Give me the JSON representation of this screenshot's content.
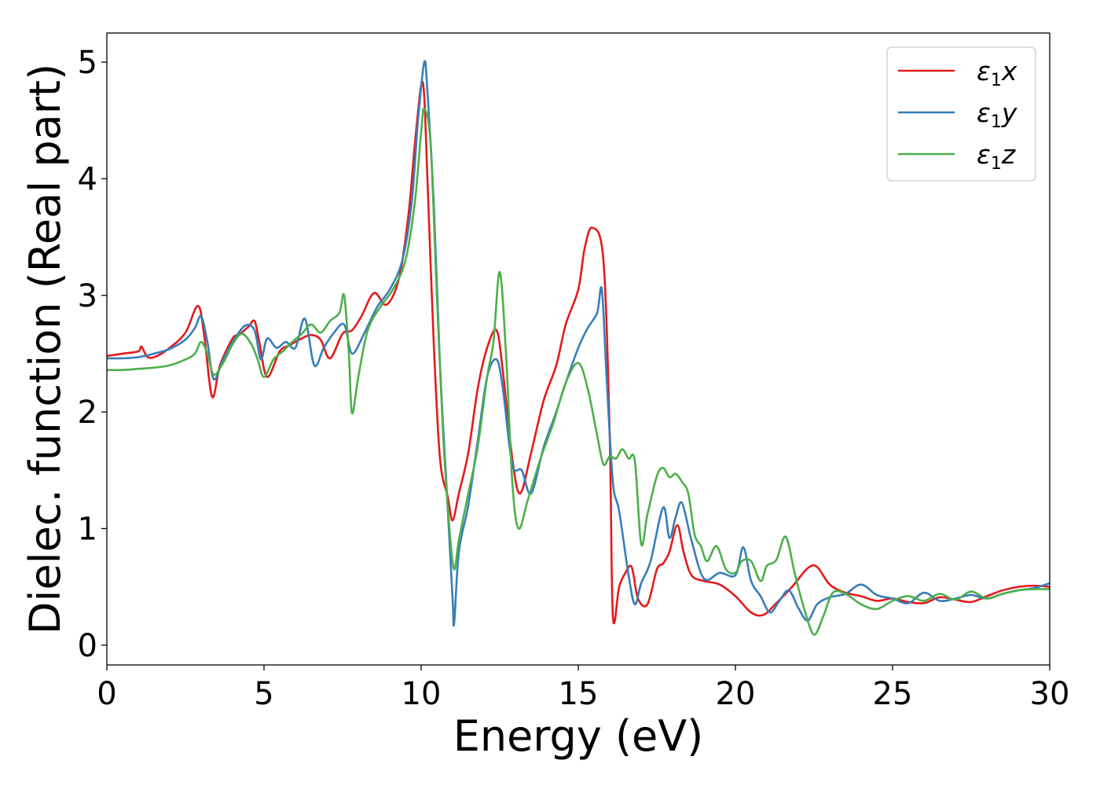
{
  "chart_data": {
    "type": "line",
    "title": "",
    "xlabel": "Energy (eV)",
    "ylabel": "Dielec. function (Real part)",
    "xlim": [
      0,
      30
    ],
    "ylim": [
      -0.17,
      5.25
    ],
    "xticks": [
      0,
      5,
      10,
      15,
      20,
      25,
      30
    ],
    "yticks": [
      0,
      1,
      2,
      3,
      4,
      5
    ],
    "xtick_labels": [
      "0",
      "5",
      "10",
      "15",
      "20",
      "25",
      "30"
    ],
    "ytick_labels": [
      "0",
      "1",
      "2",
      "3",
      "4",
      "5"
    ],
    "grid": false,
    "legend_position": "top-right",
    "series": [
      {
        "name": "ε1x",
        "legend": {
          "main": "ε",
          "sub": "1",
          "tail": "x"
        },
        "color": "#e41a1c",
        "x": [
          0,
          0.5,
          1.0,
          1.1,
          1.3,
          1.6,
          2.0,
          2.5,
          2.9,
          3.1,
          3.35,
          3.6,
          4.0,
          4.2,
          4.5,
          4.7,
          4.85,
          5.1,
          5.5,
          5.8,
          6.2,
          6.5,
          6.8,
          7.1,
          7.5,
          7.8,
          8.1,
          8.5,
          8.9,
          9.3,
          9.6,
          9.8,
          10.0,
          10.1,
          10.2,
          10.4,
          10.6,
          10.85,
          11.0,
          11.2,
          11.5,
          11.8,
          12.1,
          12.4,
          12.6,
          12.9,
          13.15,
          13.5,
          13.9,
          14.3,
          14.6,
          15.0,
          15.2,
          15.45,
          15.8,
          16.0,
          16.1,
          16.3,
          16.5,
          16.7,
          16.9,
          17.2,
          17.5,
          17.7,
          17.9,
          18.15,
          18.35,
          18.6,
          19.0,
          19.5,
          20.0,
          20.5,
          20.9,
          21.3,
          21.8,
          22.3,
          22.6,
          23.0,
          23.5,
          24.0,
          24.5,
          25.0,
          25.5,
          26.0,
          26.5,
          27.0,
          27.5,
          28.0,
          28.5,
          29.0,
          29.5,
          30.0
        ],
        "y": [
          2.48,
          2.5,
          2.52,
          2.56,
          2.47,
          2.48,
          2.55,
          2.68,
          2.91,
          2.65,
          2.13,
          2.4,
          2.63,
          2.66,
          2.73,
          2.78,
          2.6,
          2.3,
          2.52,
          2.57,
          2.63,
          2.66,
          2.62,
          2.46,
          2.67,
          2.7,
          2.82,
          3.02,
          2.92,
          3.15,
          3.7,
          4.3,
          4.8,
          4.7,
          4.0,
          2.6,
          1.6,
          1.27,
          1.07,
          1.3,
          1.65,
          2.2,
          2.55,
          2.7,
          2.35,
          1.6,
          1.3,
          1.65,
          2.1,
          2.4,
          2.75,
          3.05,
          3.4,
          3.58,
          3.3,
          1.8,
          0.25,
          0.5,
          0.62,
          0.67,
          0.4,
          0.35,
          0.65,
          0.7,
          0.8,
          1.03,
          0.8,
          0.6,
          0.55,
          0.52,
          0.42,
          0.28,
          0.26,
          0.36,
          0.5,
          0.66,
          0.67,
          0.52,
          0.45,
          0.42,
          0.38,
          0.4,
          0.37,
          0.36,
          0.41,
          0.39,
          0.37,
          0.42,
          0.47,
          0.5,
          0.51,
          0.5
        ]
      },
      {
        "name": "ε1y",
        "legend": {
          "main": "ε",
          "sub": "1",
          "tail": "y"
        },
        "color": "#377eb8",
        "x": [
          0,
          0.5,
          1.0,
          1.5,
          2.0,
          2.5,
          2.8,
          3.0,
          3.2,
          3.4,
          3.7,
          4.0,
          4.4,
          4.7,
          4.9,
          5.1,
          5.4,
          5.7,
          6.0,
          6.3,
          6.6,
          6.9,
          7.2,
          7.55,
          7.8,
          8.2,
          8.6,
          9.0,
          9.4,
          9.7,
          9.9,
          10.1,
          10.2,
          10.4,
          10.6,
          10.8,
          11.0,
          11.05,
          11.2,
          11.5,
          11.8,
          12.1,
          12.4,
          12.6,
          12.9,
          13.2,
          13.5,
          13.9,
          14.3,
          14.6,
          15.0,
          15.3,
          15.6,
          15.75,
          15.9,
          16.1,
          16.3,
          16.6,
          16.8,
          17.0,
          17.3,
          17.7,
          17.9,
          18.1,
          18.3,
          18.6,
          19.0,
          19.5,
          20.0,
          20.25,
          20.5,
          20.8,
          21.1,
          21.4,
          21.7,
          22.0,
          22.3,
          22.6,
          23.0,
          23.5,
          24.0,
          24.5,
          25.0,
          25.5,
          26.0,
          26.5,
          27.0,
          27.5,
          28.0,
          28.5,
          29.0,
          29.5,
          30.0
        ],
        "y": [
          2.46,
          2.46,
          2.47,
          2.5,
          2.54,
          2.62,
          2.72,
          2.82,
          2.6,
          2.28,
          2.45,
          2.6,
          2.74,
          2.7,
          2.45,
          2.63,
          2.55,
          2.6,
          2.55,
          2.8,
          2.4,
          2.55,
          2.67,
          2.75,
          2.5,
          2.68,
          2.9,
          3.05,
          3.3,
          3.8,
          4.5,
          5.0,
          4.75,
          3.8,
          2.4,
          1.4,
          0.4,
          0.19,
          0.8,
          1.2,
          1.75,
          2.3,
          2.45,
          2.2,
          1.55,
          1.5,
          1.3,
          1.7,
          2.0,
          2.25,
          2.55,
          2.72,
          2.85,
          3.05,
          2.3,
          1.4,
          1.15,
          0.6,
          0.35,
          0.53,
          0.72,
          1.18,
          0.92,
          1.1,
          1.22,
          0.9,
          0.57,
          0.62,
          0.6,
          0.84,
          0.55,
          0.42,
          0.28,
          0.38,
          0.47,
          0.32,
          0.21,
          0.35,
          0.41,
          0.44,
          0.52,
          0.43,
          0.4,
          0.36,
          0.45,
          0.38,
          0.4,
          0.43,
          0.4,
          0.44,
          0.47,
          0.49,
          0.53
        ]
      },
      {
        "name": "ε1z",
        "legend": {
          "main": "ε",
          "sub": "1",
          "tail": "z"
        },
        "color": "#4daf4a",
        "x": [
          0,
          0.5,
          1.0,
          1.5,
          2.0,
          2.5,
          2.8,
          3.0,
          3.2,
          3.4,
          3.7,
          4.0,
          4.3,
          4.6,
          4.8,
          5.0,
          5.3,
          5.6,
          5.9,
          6.2,
          6.5,
          6.8,
          7.1,
          7.4,
          7.55,
          7.7,
          7.8,
          8.0,
          8.3,
          8.7,
          9.1,
          9.5,
          9.8,
          10.0,
          10.1,
          10.3,
          10.5,
          10.7,
          10.9,
          11.05,
          11.2,
          11.5,
          11.8,
          12.1,
          12.3,
          12.5,
          12.7,
          12.9,
          13.1,
          13.4,
          13.8,
          14.2,
          14.6,
          15.0,
          15.3,
          15.6,
          15.8,
          16.0,
          16.2,
          16.4,
          16.6,
          16.8,
          17.0,
          17.2,
          17.5,
          17.7,
          17.9,
          18.1,
          18.3,
          18.5,
          18.7,
          18.9,
          19.1,
          19.4,
          19.7,
          20.0,
          20.2,
          20.5,
          20.8,
          21.0,
          21.3,
          21.6,
          21.9,
          22.2,
          22.5,
          22.8,
          23.1,
          23.5,
          24.0,
          24.5,
          25.0,
          25.5,
          26.0,
          26.5,
          27.0,
          27.5,
          28.0,
          28.5,
          29.0,
          29.5,
          30.0
        ],
        "y": [
          2.36,
          2.36,
          2.37,
          2.38,
          2.4,
          2.45,
          2.5,
          2.6,
          2.5,
          2.32,
          2.42,
          2.58,
          2.67,
          2.58,
          2.45,
          2.3,
          2.45,
          2.52,
          2.6,
          2.67,
          2.75,
          2.68,
          2.78,
          2.85,
          3.0,
          2.5,
          1.99,
          2.3,
          2.7,
          2.9,
          3.05,
          3.3,
          3.8,
          4.4,
          4.6,
          4.3,
          3.0,
          1.8,
          1.0,
          0.65,
          0.9,
          1.3,
          1.7,
          2.3,
          2.6,
          3.2,
          2.5,
          1.4,
          1.0,
          1.25,
          1.6,
          1.9,
          2.25,
          2.42,
          2.2,
          1.8,
          1.55,
          1.62,
          1.6,
          1.68,
          1.6,
          1.58,
          0.87,
          1.12,
          1.45,
          1.52,
          1.44,
          1.47,
          1.4,
          1.3,
          0.95,
          0.85,
          0.72,
          0.85,
          0.65,
          0.62,
          0.72,
          0.72,
          0.55,
          0.68,
          0.73,
          0.93,
          0.6,
          0.3,
          0.09,
          0.25,
          0.45,
          0.44,
          0.35,
          0.31,
          0.38,
          0.42,
          0.38,
          0.44,
          0.39,
          0.46,
          0.4,
          0.44,
          0.47,
          0.48,
          0.48
        ]
      }
    ]
  }
}
